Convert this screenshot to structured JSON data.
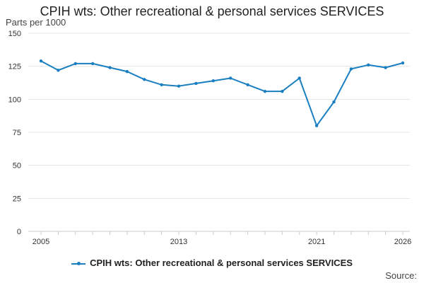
{
  "chart_data": {
    "type": "line",
    "title": "CPIH wts: Other recreational & personal services SERVICES",
    "ylabel": "Parts per 1000",
    "xlabel": "",
    "ylim": [
      0,
      150
    ],
    "yticks": [
      0,
      25,
      50,
      75,
      100,
      125,
      150
    ],
    "xlim": [
      2005,
      2026
    ],
    "xtick_labels": [
      "2005",
      "2013",
      "2021",
      "2026"
    ],
    "x": [
      2005,
      2006,
      2007,
      2008,
      2009,
      2010,
      2011,
      2012,
      2013,
      2014,
      2015,
      2016,
      2017,
      2018,
      2019,
      2020,
      2021,
      2022,
      2023,
      2024,
      2025,
      2026
    ],
    "series": [
      {
        "name": "CPIH wts: Other recreational & personal services SERVICES",
        "color": "#1a7fc1",
        "values": [
          129,
          122,
          127,
          127,
          124,
          121,
          115,
          111,
          110,
          112,
          114,
          116,
          111,
          106,
          106,
          116,
          80,
          98,
          123,
          126,
          124,
          127.5
        ]
      }
    ],
    "grid": true,
    "legend_position": "bottom"
  },
  "source_label": "Source:"
}
